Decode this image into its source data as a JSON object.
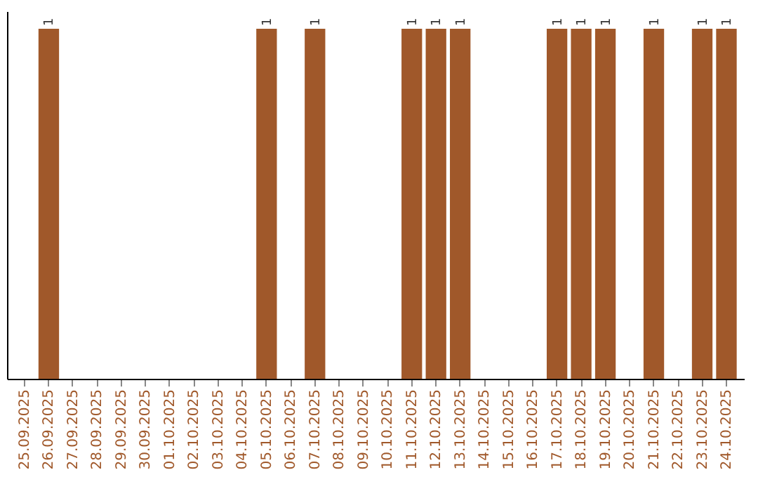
{
  "chart_data": {
    "type": "bar",
    "categories": [
      "25.09.2025",
      "26.09.2025",
      "27.09.2025",
      "28.09.2025",
      "29.09.2025",
      "30.09.2025",
      "01.10.2025",
      "02.10.2025",
      "03.10.2025",
      "04.10.2025",
      "05.10.2025",
      "06.10.2025",
      "07.10.2025",
      "08.10.2025",
      "09.10.2025",
      "10.10.2025",
      "11.10.2025",
      "12.10.2025",
      "13.10.2025",
      "14.10.2025",
      "15.10.2025",
      "16.10.2025",
      "17.10.2025",
      "18.10.2025",
      "19.10.2025",
      "20.10.2025",
      "21.10.2025",
      "22.10.2025",
      "23.10.2025",
      "24.10.2025"
    ],
    "values": [
      0,
      1,
      0,
      0,
      0,
      0,
      0,
      0,
      0,
      0,
      1,
      0,
      1,
      0,
      0,
      0,
      1,
      1,
      1,
      0,
      0,
      0,
      1,
      1,
      1,
      0,
      1,
      0,
      1,
      1
    ],
    "value_labels": [
      null,
      "1",
      null,
      null,
      null,
      null,
      null,
      null,
      null,
      null,
      "1",
      null,
      "1",
      null,
      null,
      null,
      "1",
      "1",
      "1",
      null,
      null,
      null,
      "1",
      "1",
      "1",
      null,
      "1",
      null,
      "1",
      "1"
    ],
    "color": "#a0582a",
    "ylim": [
      0,
      1.05
    ],
    "tick_labels": "x"
  }
}
